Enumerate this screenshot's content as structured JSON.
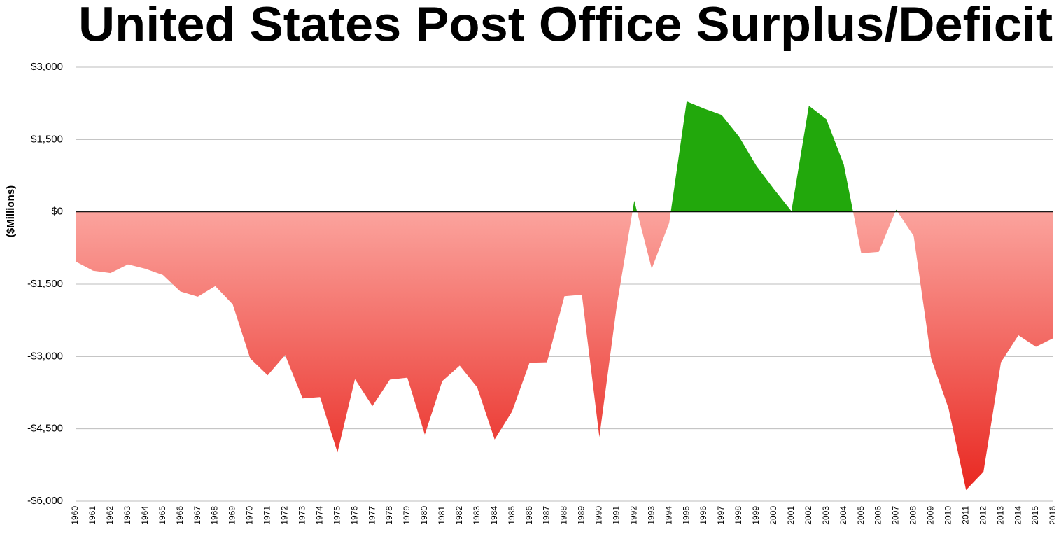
{
  "chart_data": {
    "type": "area",
    "title": "United States Post Office Surplus/Deficit",
    "y_label": "($Millions)",
    "categories": [
      "1960",
      "1961",
      "1962",
      "1963",
      "1964",
      "1965",
      "1966",
      "1967",
      "1968",
      "1969",
      "1970",
      "1971",
      "1972",
      "1973",
      "1974",
      "1975",
      "1976",
      "1977",
      "1978",
      "1979",
      "1980",
      "1981",
      "1982",
      "1983",
      "1984",
      "1985",
      "1986",
      "1987",
      "1988",
      "1989",
      "1990",
      "1991",
      "1992",
      "1993",
      "1994",
      "1995",
      "1996",
      "1997",
      "1998",
      "1999",
      "2000",
      "2001",
      "2002",
      "2003",
      "2004",
      "2005",
      "2006",
      "2007",
      "2008",
      "2009",
      "2010",
      "2011",
      "2012",
      "2013",
      "2014",
      "2015",
      "2016"
    ],
    "values": [
      -1030,
      -1220,
      -1270,
      -1090,
      -1180,
      -1310,
      -1650,
      -1760,
      -1540,
      -1920,
      -3040,
      -3390,
      -2970,
      -3870,
      -3840,
      -4990,
      -3470,
      -4030,
      -3480,
      -3440,
      -4620,
      -3510,
      -3190,
      -3640,
      -4720,
      -4140,
      -3130,
      -3120,
      -1750,
      -1720,
      -4670,
      -1940,
      230,
      -1180,
      -230,
      2290,
      2140,
      2010,
      1560,
      950,
      470,
      15,
      2200,
      1920,
      980,
      -860,
      -830,
      44,
      -500,
      -3040,
      -4080,
      -5770,
      -5390,
      -3120,
      -2560,
      -2800,
      -2620
    ],
    "positive_color": "#22a80c",
    "negative_color": "#e8231c",
    "ylim": [
      -6000,
      3000
    ],
    "yticks": [
      {
        "value": -6000,
        "label": "-$6,000"
      },
      {
        "value": -4500,
        "label": "-$4,500"
      },
      {
        "value": -3000,
        "label": "-$3,000"
      },
      {
        "value": -1500,
        "label": "-$1,500"
      },
      {
        "value": 0,
        "label": "$0"
      },
      {
        "value": 1500,
        "label": "$1,500"
      },
      {
        "value": 3000,
        "label": "$3,000"
      }
    ],
    "grid": true
  }
}
